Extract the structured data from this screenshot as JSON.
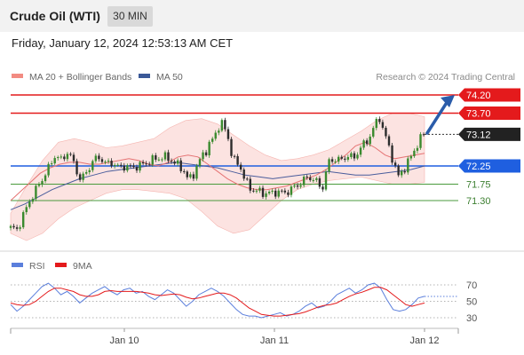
{
  "header": {
    "title": "Crude Oil (WTI)",
    "timeframe": "30 MIN"
  },
  "datetime": "Friday, January 12, 2024 12:53:13 AM CET",
  "main_legend": [
    {
      "label": "MA 20 + Bollinger Bands",
      "color": "#f28b82"
    },
    {
      "label": "MA 50",
      "color": "#3b5998"
    }
  ],
  "copyright": "Research © 2024 Trading Central",
  "rsi_legend": [
    {
      "label": "RSI",
      "color": "#5b7fdc"
    },
    {
      "label": "9MA",
      "color": "#e41a1c"
    }
  ],
  "chart_data": [
    {
      "type": "candlestick",
      "levels": [
        {
          "value": 74.2,
          "label": "74.20",
          "kind": "resistance",
          "color": "#e41a1c"
        },
        {
          "value": 73.7,
          "label": "73.70",
          "kind": "resistance",
          "color": "#e41a1c"
        },
        {
          "value": 73.12,
          "label": "73.12",
          "kind": "last-price",
          "color": "#222222"
        },
        {
          "value": 72.25,
          "label": "72.25",
          "kind": "pivot",
          "color": "#1f5fe0"
        },
        {
          "value": 71.75,
          "label": "71.75",
          "kind": "support",
          "color": "#4a9a3c"
        },
        {
          "value": 71.3,
          "label": "71.30",
          "kind": "support",
          "color": "#4a9a3c"
        }
      ],
      "price_path": [
        70.55,
        70.5,
        70.9,
        71.3,
        71.6,
        71.9,
        72.2,
        72.55,
        72.4,
        72.65,
        72.3,
        71.85,
        72.1,
        72.4,
        72.5,
        72.3,
        72.35,
        72.2,
        72.25,
        72.2,
        72.25,
        72.3,
        72.4,
        72.45,
        72.5,
        72.45,
        72.3,
        72.2,
        71.85,
        72.1,
        72.5,
        72.75,
        73.05,
        73.45,
        73.2,
        72.4,
        72.3,
        71.8,
        71.6,
        71.55,
        71.5,
        71.5,
        71.55,
        71.5,
        71.6,
        71.7,
        71.85,
        71.95,
        71.85,
        71.6,
        72.35,
        72.45,
        72.4,
        72.55,
        72.45,
        72.75,
        72.9,
        73.25,
        73.6,
        73.05,
        72.5,
        71.95,
        72.2,
        72.5,
        72.85,
        73.12
      ],
      "ma20_path": [
        71.3,
        71.55,
        71.8,
        72.05,
        72.2,
        72.3,
        72.35,
        72.35,
        72.3,
        72.3,
        72.35,
        72.4,
        72.45,
        72.4,
        72.3,
        72.25,
        72.35,
        72.5,
        72.55,
        72.5,
        72.3,
        72.1,
        71.9,
        71.75,
        71.65,
        71.6,
        71.6,
        71.65,
        71.7,
        71.8,
        71.9,
        72.0,
        72.15,
        72.35,
        72.55,
        72.8,
        72.9,
        72.75,
        72.55,
        72.45,
        72.5,
        72.55,
        72.6
      ],
      "ma50_path": [
        71.05,
        71.2,
        71.4,
        71.6,
        71.75,
        71.9,
        72.0,
        72.1,
        72.15,
        72.2,
        72.25,
        72.3,
        72.35,
        72.3,
        72.25,
        72.2,
        72.1,
        72.0,
        71.95,
        71.9,
        71.95,
        72.0,
        72.05,
        72.1,
        72.05,
        72.0,
        72.0,
        72.05,
        72.1,
        72.15,
        72.25
      ],
      "bollinger_upper": [
        70.95,
        71.7,
        72.4,
        72.9,
        73.0,
        72.9,
        72.75,
        72.8,
        72.9,
        73.0,
        73.3,
        73.5,
        73.55,
        73.4,
        73.1,
        72.8,
        72.55,
        72.4,
        72.45,
        72.55,
        72.7,
        72.95,
        73.2,
        73.5,
        73.7,
        73.7,
        73.6
      ],
      "bollinger_lower": [
        70.4,
        70.2,
        70.4,
        70.8,
        71.1,
        71.3,
        71.5,
        71.6,
        71.6,
        71.55,
        71.5,
        71.35,
        71.0,
        70.6,
        70.4,
        70.5,
        70.9,
        71.3,
        71.6,
        71.75,
        71.85,
        71.9,
        71.95,
        71.85,
        71.75,
        71.75,
        71.8
      ],
      "forecast_target": 74.2,
      "x_tick_labels": [
        "Jan 10",
        "Jan 11",
        "Jan 12"
      ]
    },
    {
      "type": "line",
      "name": "RSI",
      "y_tick_labels": [
        "70",
        "50",
        "30"
      ],
      "ylim": [
        20,
        80
      ],
      "series": [
        {
          "name": "RSI",
          "values": [
            46,
            38,
            44,
            52,
            60,
            68,
            72,
            66,
            58,
            62,
            56,
            48,
            54,
            60,
            64,
            68,
            62,
            58,
            64,
            66,
            60,
            62,
            56,
            52,
            58,
            64,
            60,
            52,
            44,
            50,
            58,
            62,
            66,
            62,
            56,
            48,
            40,
            34,
            32,
            32,
            30,
            32,
            34,
            36,
            32,
            34,
            38,
            44,
            48,
            42,
            44,
            50,
            58,
            62,
            66,
            60,
            64,
            70,
            72,
            66,
            52,
            40,
            38,
            40,
            46,
            54,
            56
          ]
        },
        {
          "name": "9MA",
          "values": [
            48,
            46,
            45,
            46,
            50,
            56,
            62,
            66,
            66,
            64,
            62,
            58,
            56,
            56,
            58,
            62,
            63,
            62,
            62,
            62,
            62,
            61,
            60,
            58,
            57,
            58,
            59,
            58,
            55,
            53,
            54,
            56,
            58,
            60,
            60,
            58,
            54,
            48,
            42,
            38,
            34,
            33,
            32,
            32,
            33,
            34,
            35,
            37,
            40,
            43,
            45,
            46,
            48,
            52,
            56,
            59,
            61,
            64,
            67,
            67,
            64,
            58,
            52,
            46,
            44,
            46,
            48
          ]
        }
      ]
    }
  ]
}
